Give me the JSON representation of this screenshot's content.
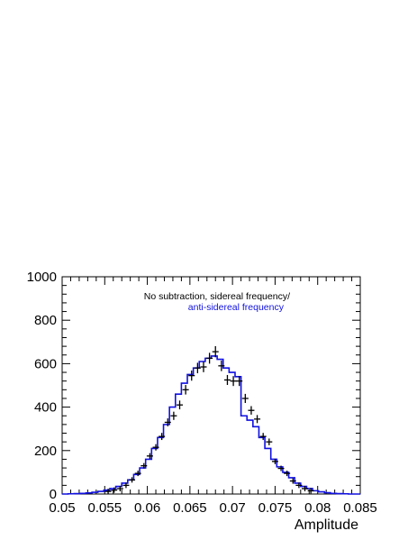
{
  "chart_data": {
    "type": "histogram",
    "xlabel": "Amplitude",
    "ylabel": "",
    "xlim": [
      0.05,
      0.085
    ],
    "ylim": [
      0,
      1000
    ],
    "x_ticks": [
      "0.05",
      "0.055",
      "0.06",
      "0.065",
      "0.07",
      "0.075",
      "0.08",
      "0.085"
    ],
    "y_ticks": [
      "0",
      "200",
      "400",
      "600",
      "800",
      "1000"
    ],
    "grid": false,
    "annotations": {
      "line1": "No subtraction, sidereal frequency/",
      "line2": "anti-sidereal frequency"
    },
    "colors": {
      "points": "#000000",
      "histogram": "#1010e0",
      "line2_text": "#1010e0"
    },
    "bin_width": 0.0007,
    "series": [
      {
        "kind": "histogram-step",
        "bin_centers": [
          0.05035,
          0.05105,
          0.05175,
          0.05245,
          0.05315,
          0.05385,
          0.05455,
          0.05525,
          0.05595,
          0.05665,
          0.05735,
          0.05805,
          0.05875,
          0.05945,
          0.06015,
          0.06085,
          0.06155,
          0.06225,
          0.06295,
          0.06365,
          0.06435,
          0.06505,
          0.06575,
          0.06645,
          0.06715,
          0.06785,
          0.06855,
          0.06925,
          0.06995,
          0.07065,
          0.07135,
          0.07205,
          0.07275,
          0.07345,
          0.07415,
          0.07485,
          0.07555,
          0.07625,
          0.07695,
          0.07765,
          0.07835,
          0.07905,
          0.07975,
          0.08045,
          0.08115,
          0.08185,
          0.08255,
          0.08325,
          0.08395,
          0.08465
        ],
        "values": [
          0,
          1,
          2,
          3,
          5,
          8,
          12,
          18,
          25,
          35,
          50,
          65,
          90,
          120,
          160,
          210,
          260,
          320,
          400,
          460,
          510,
          550,
          580,
          610,
          625,
          635,
          620,
          580,
          560,
          540,
          360,
          340,
          310,
          260,
          210,
          160,
          125,
          100,
          75,
          50,
          35,
          25,
          15,
          10,
          6,
          3,
          2,
          1,
          0,
          0
        ]
      },
      {
        "kind": "points-with-errors",
        "x": [
          0.0554,
          0.0561,
          0.0568,
          0.0575,
          0.0582,
          0.0589,
          0.0596,
          0.0603,
          0.061,
          0.0617,
          0.0624,
          0.0631,
          0.0638,
          0.0645,
          0.0652,
          0.0659,
          0.0666,
          0.0673,
          0.068,
          0.0687,
          0.0694,
          0.0701,
          0.0708,
          0.0715,
          0.0722,
          0.0729,
          0.0736,
          0.0743,
          0.075,
          0.0757,
          0.0764,
          0.0771,
          0.0778,
          0.0785,
          0.0792
        ],
        "y": [
          12,
          18,
          25,
          40,
          65,
          95,
          130,
          175,
          215,
          265,
          330,
          360,
          410,
          480,
          545,
          580,
          585,
          625,
          655,
          590,
          525,
          520,
          520,
          440,
          385,
          345,
          265,
          240,
          150,
          118,
          95,
          60,
          40,
          25,
          15
        ]
      }
    ]
  }
}
